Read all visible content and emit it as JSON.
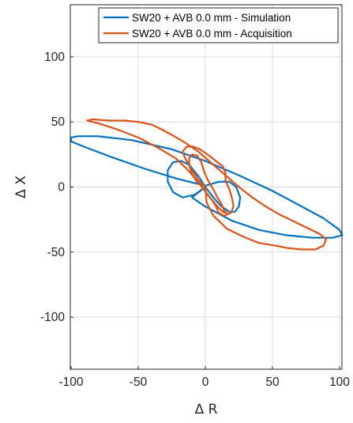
{
  "chart_data": {
    "type": "line",
    "xlabel": "Δ R",
    "ylabel": "Δ X",
    "xlim": [
      -100,
      100
    ],
    "ylim": [
      -140,
      140
    ],
    "x_ticks": [
      -100,
      -50,
      0,
      50,
      100
    ],
    "y_ticks": [
      -100,
      -50,
      0,
      50,
      100
    ],
    "x_tick_labels": [
      "-100",
      "-50",
      "0",
      "50",
      "100"
    ],
    "y_tick_labels": [
      "-100",
      "-50",
      "0",
      "50",
      "100"
    ],
    "grid": true,
    "legend_position": "top-right",
    "series": [
      {
        "name": "SW20 + AVB 0.0 mm - Simulation",
        "color": "#0072BD",
        "points": [
          [
            0,
            0
          ],
          [
            -8,
            -6
          ],
          [
            -17,
            -8
          ],
          [
            -24,
            -4
          ],
          [
            -28,
            4
          ],
          [
            -28,
            13
          ],
          [
            -24,
            19
          ],
          [
            -18,
            20
          ],
          [
            -12,
            17
          ],
          [
            -5,
            8
          ],
          [
            0,
            0
          ],
          [
            6,
            -8
          ],
          [
            12,
            -15
          ],
          [
            18,
            -19
          ],
          [
            22,
            -19
          ],
          [
            25,
            -15
          ],
          [
            26,
            -8
          ],
          [
            23,
            0
          ],
          [
            18,
            4
          ],
          [
            10,
            4
          ],
          [
            0,
            1
          ],
          [
            -20,
            6
          ],
          [
            -45,
            14
          ],
          [
            -70,
            23
          ],
          [
            -88,
            30
          ],
          [
            -100,
            35
          ],
          [
            -100,
            38
          ],
          [
            -95,
            39
          ],
          [
            -80,
            39
          ],
          [
            -55,
            36
          ],
          [
            -25,
            29
          ],
          [
            0,
            20
          ],
          [
            25,
            9
          ],
          [
            50,
            -3
          ],
          [
            70,
            -14
          ],
          [
            88,
            -24
          ],
          [
            100,
            -33
          ],
          [
            102,
            -37
          ],
          [
            95,
            -39
          ],
          [
            80,
            -39
          ],
          [
            60,
            -37
          ],
          [
            40,
            -33
          ],
          [
            20,
            -26
          ],
          [
            0,
            -15
          ],
          [
            -10,
            -8
          ],
          [
            0,
            0
          ]
        ]
      },
      {
        "name": "SW20 + AVB 0.0 mm - Acquisition",
        "color": "#D95319",
        "points": [
          [
            0,
            0
          ],
          [
            -5,
            5
          ],
          [
            -10,
            13
          ],
          [
            -15,
            22
          ],
          [
            -17,
            27
          ],
          [
            -14,
            31
          ],
          [
            -9,
            31
          ],
          [
            -4,
            29
          ],
          [
            3,
            24
          ],
          [
            9,
            19
          ],
          [
            13,
            16
          ],
          [
            15,
            11
          ],
          [
            15,
            5
          ],
          [
            18,
            -2
          ],
          [
            20,
            -9
          ],
          [
            21,
            -15
          ],
          [
            19,
            -20
          ],
          [
            14,
            -22
          ],
          [
            10,
            -20
          ],
          [
            8,
            -15
          ],
          [
            5,
            -10
          ],
          [
            1,
            -5
          ],
          [
            -3,
            1
          ],
          [
            -7,
            5
          ],
          [
            -10,
            10
          ],
          [
            -12,
            17
          ],
          [
            -12,
            22
          ],
          [
            -10,
            25
          ],
          [
            -6,
            24
          ],
          [
            -3,
            19
          ],
          [
            -1,
            12
          ],
          [
            2,
            5
          ],
          [
            6,
            -2
          ],
          [
            9,
            -8
          ],
          [
            12,
            -13
          ],
          [
            14,
            -18
          ],
          [
            16,
            -20
          ],
          [
            13,
            -19
          ],
          [
            9,
            -15
          ],
          [
            2,
            -6
          ],
          [
            -5,
            3
          ],
          [
            -12,
            12
          ],
          [
            -22,
            22
          ],
          [
            -35,
            30
          ],
          [
            -50,
            38
          ],
          [
            -65,
            44
          ],
          [
            -80,
            49
          ],
          [
            -88,
            51
          ],
          [
            -84,
            52
          ],
          [
            -72,
            51
          ],
          [
            -60,
            51
          ],
          [
            -50,
            50
          ],
          [
            -40,
            48
          ],
          [
            -32,
            44
          ],
          [
            -25,
            40
          ],
          [
            -15,
            34
          ],
          [
            -5,
            27
          ],
          [
            5,
            18
          ],
          [
            15,
            9
          ],
          [
            25,
            0
          ],
          [
            35,
            -8
          ],
          [
            45,
            -15
          ],
          [
            55,
            -21
          ],
          [
            65,
            -26
          ],
          [
            75,
            -31
          ],
          [
            85,
            -36
          ],
          [
            90,
            -40
          ],
          [
            88,
            -45
          ],
          [
            82,
            -48
          ],
          [
            72,
            -48
          ],
          [
            62,
            -47
          ],
          [
            52,
            -45
          ],
          [
            40,
            -43
          ],
          [
            28,
            -38
          ],
          [
            16,
            -32
          ],
          [
            6,
            -22
          ],
          [
            1,
            -12
          ],
          [
            0,
            0
          ]
        ]
      }
    ]
  }
}
